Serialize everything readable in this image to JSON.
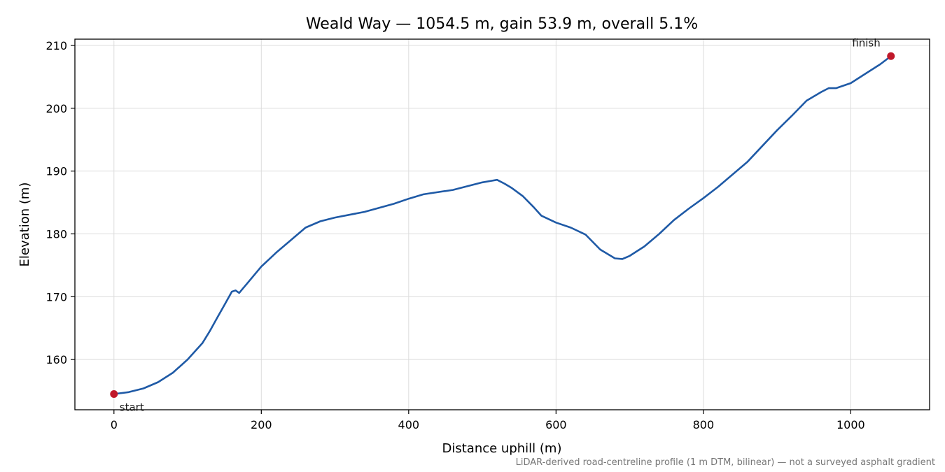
{
  "chart_data": {
    "type": "line",
    "title": "Weald Way — 1054.5 m, gain 53.9 m, overall 5.1%",
    "xlabel": "Distance uphill (m)",
    "ylabel": "Elevation (m)",
    "xlim": [
      -53,
      1107
    ],
    "ylim": [
      152,
      211
    ],
    "xticks": [
      0,
      200,
      400,
      600,
      800,
      1000
    ],
    "yticks": [
      160,
      170,
      180,
      190,
      200,
      210
    ],
    "grid": true,
    "footnote": "LiDAR-derived road-centreline profile (1 m DTM, bilinear) — not a surveyed asphalt gradient",
    "series": [
      {
        "color": "#1f5aa6",
        "x": [
          0,
          20,
          40,
          60,
          80,
          100,
          120,
          130,
          140,
          150,
          160,
          165,
          170,
          175,
          180,
          200,
          220,
          240,
          260,
          280,
          300,
          340,
          380,
          400,
          420,
          460,
          500,
          510,
          520,
          530,
          540,
          555,
          570,
          580,
          600,
          620,
          640,
          660,
          680,
          690,
          700,
          720,
          740,
          760,
          780,
          800,
          820,
          840,
          860,
          880,
          900,
          920,
          940,
          960,
          970,
          980,
          1000,
          1020,
          1040,
          1054.5
        ],
        "y": [
          154.5,
          154.8,
          155.4,
          156.4,
          157.9,
          160.0,
          162.6,
          164.5,
          166.6,
          168.7,
          170.8,
          171.0,
          170.6,
          171.3,
          172.0,
          174.8,
          177.0,
          179.0,
          181.0,
          182.0,
          182.6,
          183.5,
          184.8,
          185.6,
          186.3,
          187.0,
          188.2,
          188.4,
          188.6,
          188.0,
          187.3,
          186.0,
          184.2,
          182.9,
          181.8,
          181.0,
          179.9,
          177.5,
          176.1,
          176.0,
          176.5,
          178.0,
          180.0,
          182.2,
          184.0,
          185.7,
          187.5,
          189.5,
          191.5,
          194.0,
          196.5,
          198.8,
          201.2,
          202.6,
          203.2,
          203.2,
          204.0,
          205.5,
          207.0,
          208.3
        ]
      }
    ],
    "points": [
      {
        "label": "start",
        "x": 0,
        "y": 154.5,
        "color": "#c0182a"
      },
      {
        "label": "finish",
        "x": 1054.5,
        "y": 208.3,
        "color": "#c0182a"
      }
    ]
  }
}
